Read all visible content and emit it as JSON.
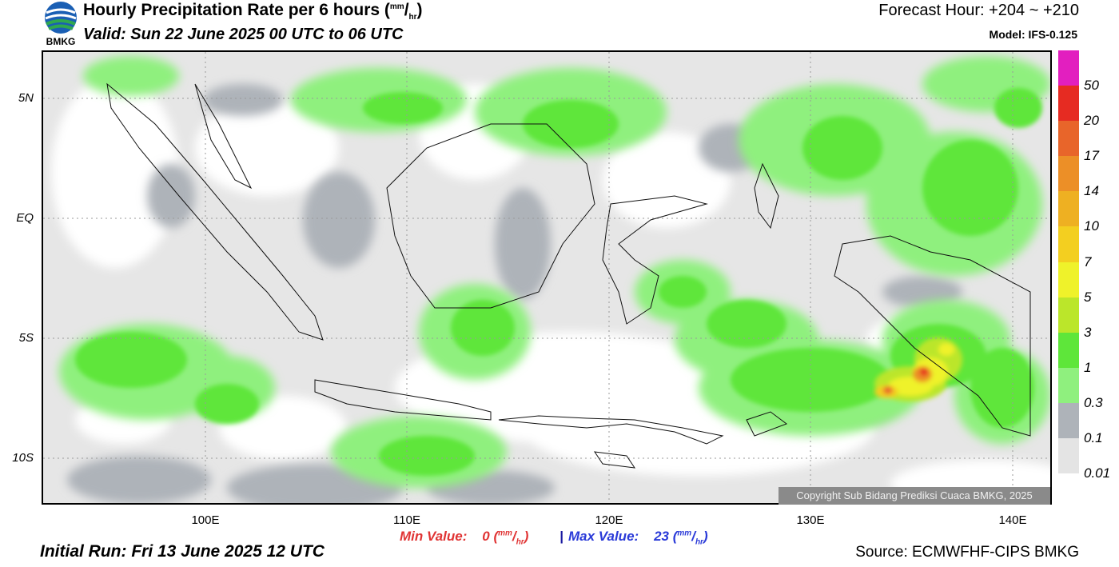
{
  "header": {
    "title_main": "Hourly Precipitation Rate per 6 hours (",
    "title_unit_top": "mm",
    "title_unit_slash": "/",
    "title_unit_bottom": "hr",
    "title_close": ")",
    "valid": "Valid: Sun 22 June 2025 00 UTC to 06 UTC",
    "forecast_hour": "Forecast Hour: +204 ~ +210",
    "model": "Model: IFS-0.125",
    "logo_text": "BMKG"
  },
  "axes": {
    "lat_labels": [
      "5N",
      "EQ",
      "5S",
      "10S"
    ],
    "lon_labels": [
      "100E",
      "110E",
      "120E",
      "130E",
      "140E"
    ]
  },
  "colorbar": {
    "labels": [
      "50",
      "20",
      "17",
      "14",
      "10",
      "7",
      "5",
      "3",
      "1",
      "0.3",
      "0.1",
      "0.01"
    ],
    "colors": [
      "#e21fbf",
      "#e62b22",
      "#e8652a",
      "#ec8f27",
      "#eeb022",
      "#f3cf20",
      "#eff22a",
      "#bbe62a",
      "#5ee63a",
      "#8ff07e",
      "#aeb3b9",
      "#e4e4e4"
    ]
  },
  "stats": {
    "min_label": "Min Value:",
    "min_value": "0",
    "max_label": "Max Value:",
    "max_value": "23",
    "unit_top": "mm",
    "unit_slash": "/",
    "unit_bottom": "hr",
    "separator": "|"
  },
  "footer": {
    "initial_run": "Initial Run: Fri 13 June 2025 12 UTC",
    "source": "Source: ECMWFHF-CIPS BMKG",
    "copyright": "Copyright Sub Bidang Prediksi Cuaca BMKG, 2025"
  },
  "map": {
    "max_precip_location": "near 135E, 7S"
  }
}
